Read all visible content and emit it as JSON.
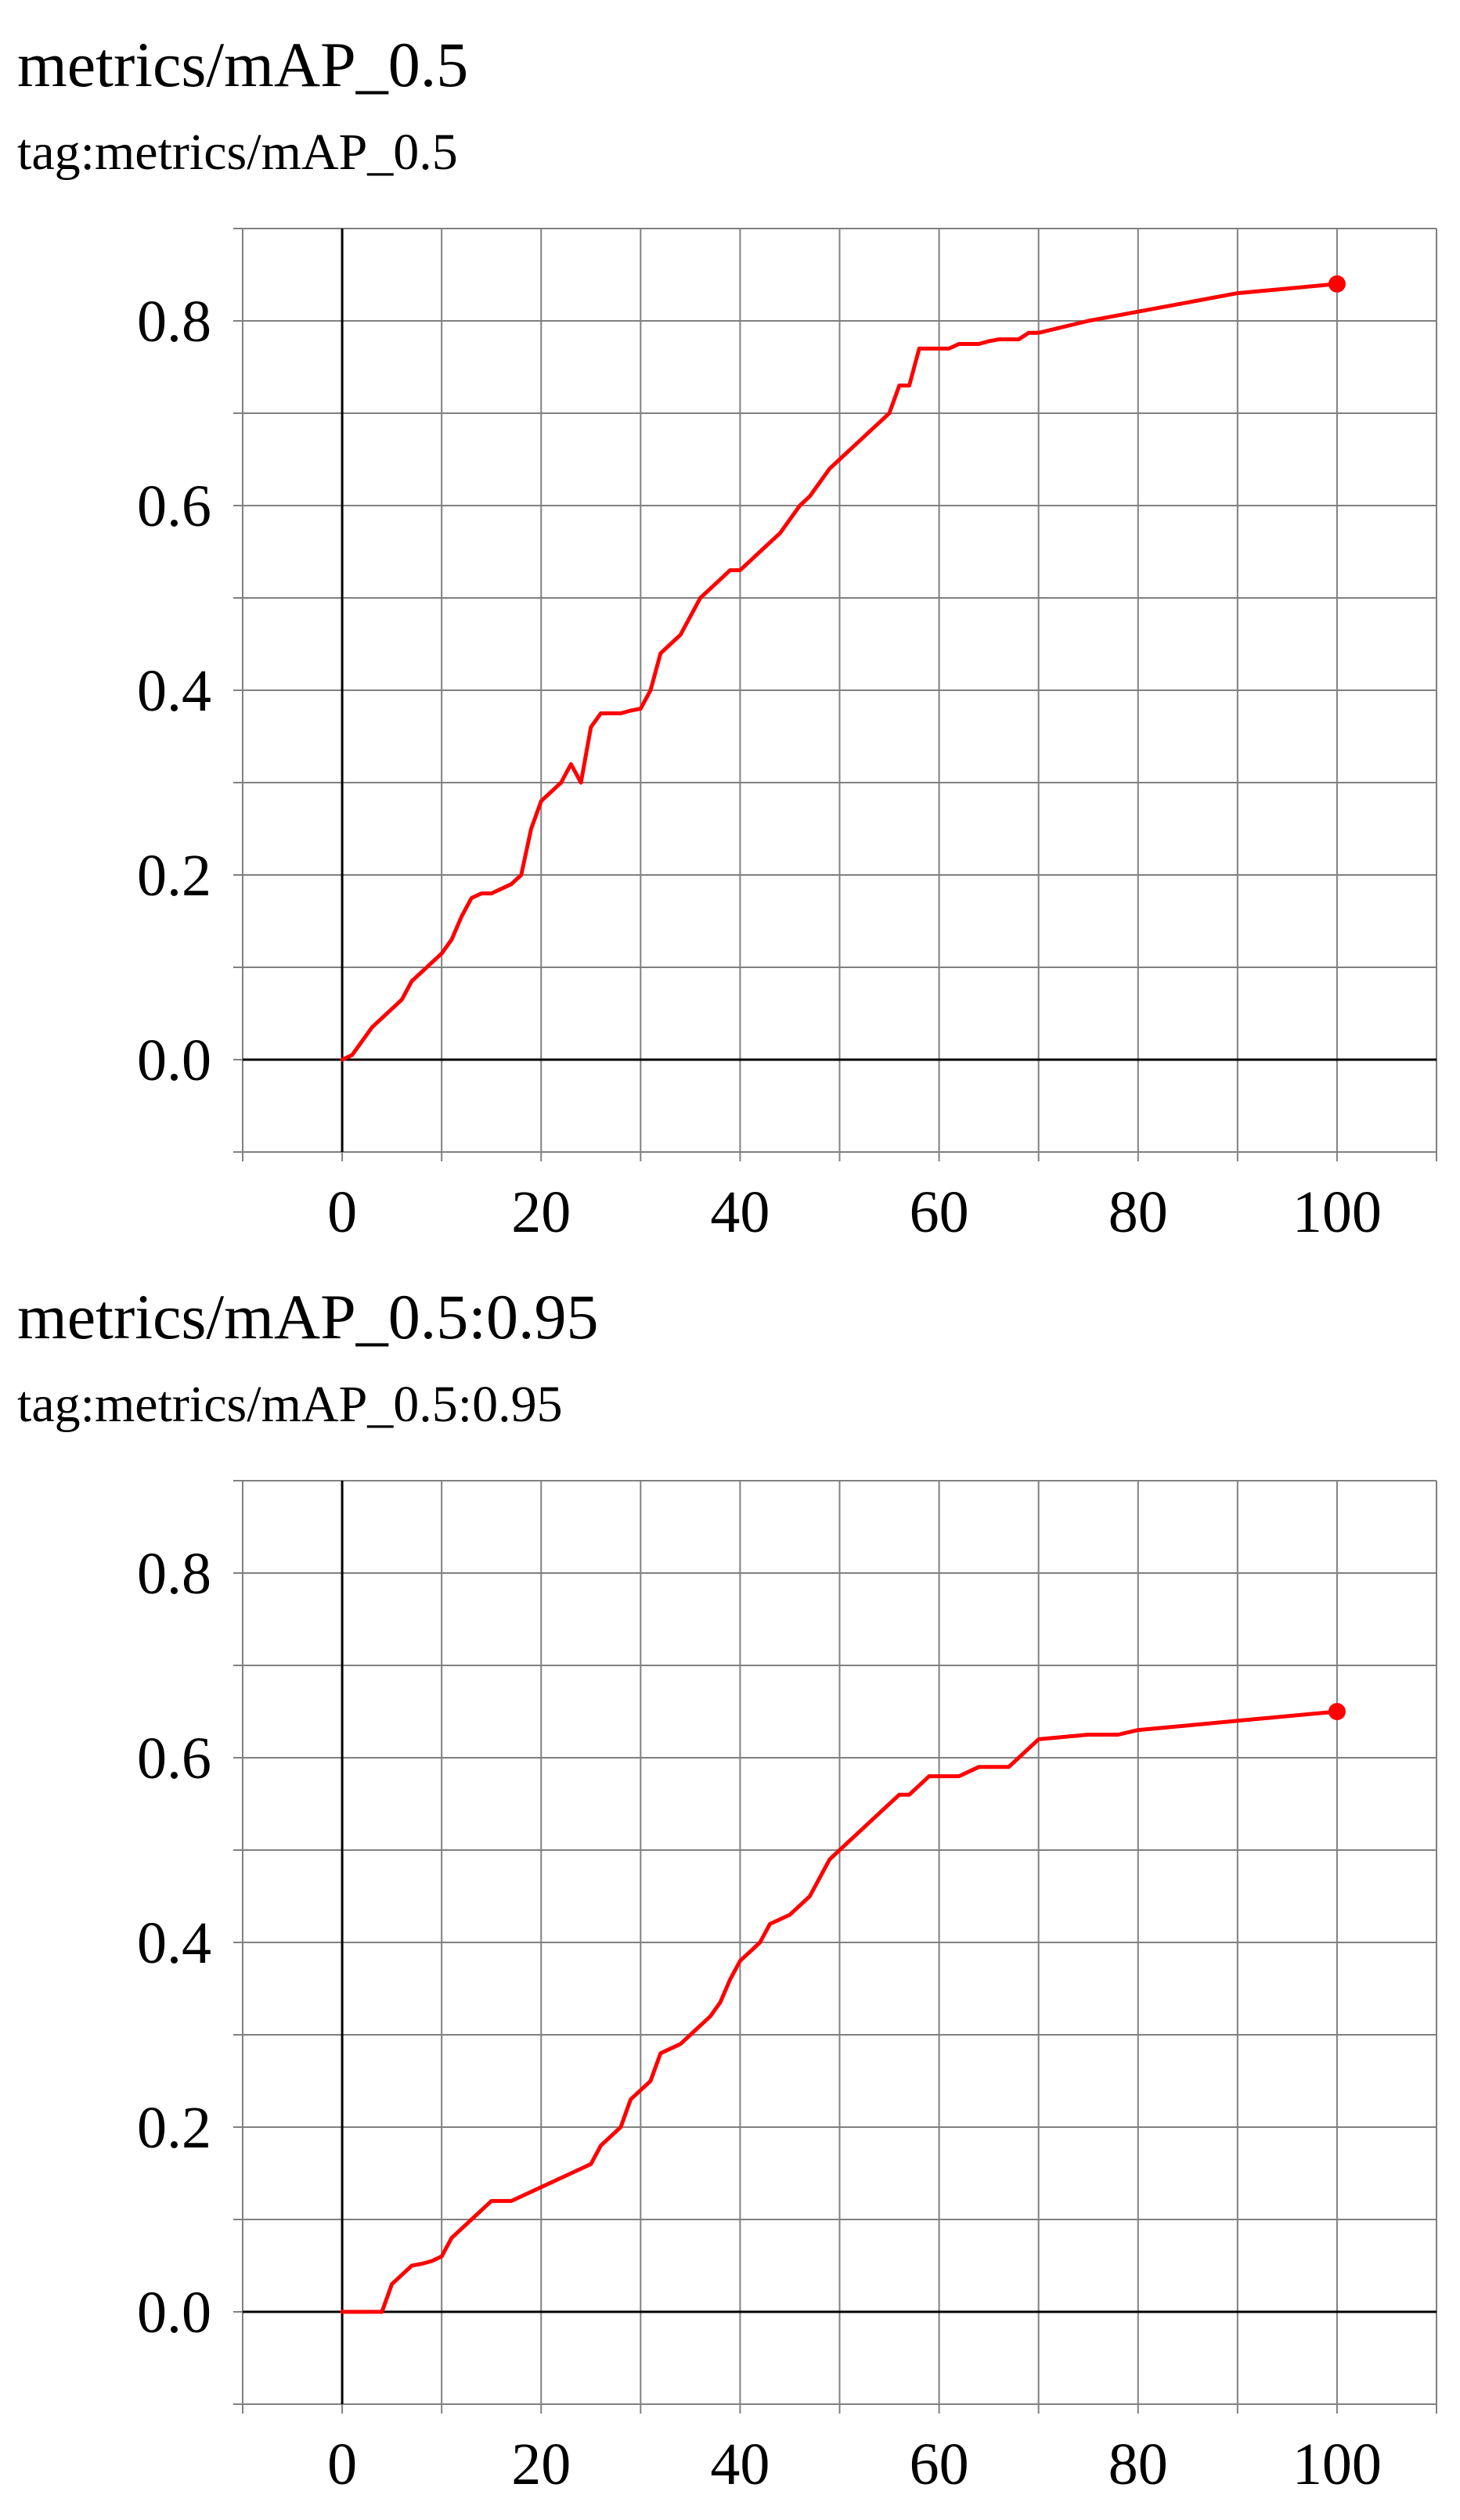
{
  "colors": {
    "series": "#ff0000",
    "grid": "#808080",
    "axis": "#000000",
    "background": "#ffffff"
  },
  "chart_data": [
    {
      "type": "line",
      "title": "metrics/mAP_0.5",
      "subtitle": "tag:metrics/mAP_0.5",
      "xlabel": "",
      "ylabel": "",
      "xlim": [
        -10,
        110
      ],
      "ylim": [
        -0.1,
        0.9
      ],
      "xticks": [
        "0",
        "20",
        "40",
        "60",
        "80",
        "100"
      ],
      "yticks": [
        "0.0",
        "0.2",
        "0.4",
        "0.6",
        "0.8"
      ],
      "grid": true,
      "legend": "none",
      "series": [
        {
          "color": "#ff0000",
          "marker_at_last_point": true,
          "x": [
            0,
            1,
            2,
            3,
            4,
            5,
            6,
            7,
            8,
            9,
            10,
            11,
            12,
            13,
            14,
            15,
            16,
            17,
            18,
            19,
            20,
            21,
            22,
            23,
            24,
            25,
            26,
            27,
            28,
            29,
            30,
            31,
            32,
            33,
            34,
            35,
            36,
            37,
            38,
            39,
            40,
            41,
            42,
            43,
            44,
            45,
            46,
            47,
            48,
            49,
            50,
            51,
            52,
            53,
            54,
            55,
            56,
            57,
            58,
            59,
            60,
            61,
            62,
            63,
            64,
            65,
            66,
            67,
            68,
            69,
            70,
            75,
            80,
            85,
            90,
            95,
            100
          ],
          "y": [
            0.0,
            0.005,
            0.02,
            0.035,
            0.045,
            0.055,
            0.065,
            0.085,
            0.095,
            0.105,
            0.115,
            0.13,
            0.155,
            0.175,
            0.18,
            0.18,
            0.185,
            0.19,
            0.2,
            0.25,
            0.28,
            0.29,
            0.3,
            0.32,
            0.3,
            0.36,
            0.375,
            0.375,
            0.375,
            0.378,
            0.38,
            0.4,
            0.44,
            0.45,
            0.46,
            0.48,
            0.5,
            0.51,
            0.52,
            0.53,
            0.53,
            0.54,
            0.55,
            0.56,
            0.57,
            0.585,
            0.6,
            0.61,
            0.625,
            0.64,
            0.65,
            0.66,
            0.67,
            0.68,
            0.69,
            0.7,
            0.73,
            0.73,
            0.77,
            0.77,
            0.77,
            0.77,
            0.775,
            0.775,
            0.775,
            0.778,
            0.78,
            0.78,
            0.78,
            0.787,
            0.787,
            0.8,
            0.81,
            0.82,
            0.83,
            0.835,
            0.84
          ]
        }
      ]
    },
    {
      "type": "line",
      "title": "metrics/mAP_0.5:0.95",
      "subtitle": "tag:metrics/mAP_0.5:0.95",
      "xlabel": "",
      "ylabel": "",
      "xlim": [
        -10,
        110
      ],
      "ylim": [
        -0.1,
        0.9
      ],
      "xticks": [
        "0",
        "20",
        "40",
        "60",
        "80",
        "100"
      ],
      "yticks": [
        "0.0",
        "0.2",
        "0.4",
        "0.6",
        "0.8"
      ],
      "grid": true,
      "legend": "none",
      "series": [
        {
          "color": "#ff0000",
          "marker_at_last_point": true,
          "x": [
            0,
            1,
            2,
            3,
            4,
            5,
            6,
            7,
            8,
            9,
            10,
            11,
            12,
            13,
            14,
            15,
            16,
            17,
            18,
            19,
            20,
            21,
            22,
            23,
            24,
            25,
            26,
            27,
            28,
            29,
            30,
            31,
            32,
            33,
            34,
            35,
            36,
            37,
            38,
            39,
            40,
            41,
            42,
            43,
            44,
            45,
            46,
            47,
            48,
            49,
            50,
            51,
            52,
            53,
            54,
            55,
            56,
            57,
            58,
            59,
            60,
            61,
            62,
            63,
            64,
            65,
            66,
            67,
            68,
            69,
            70,
            75,
            78,
            80,
            85,
            90,
            95,
            100
          ],
          "y": [
            0.0,
            0.0,
            0.0,
            0.0,
            0.0,
            0.03,
            0.04,
            0.05,
            0.052,
            0.055,
            0.06,
            0.08,
            0.09,
            0.1,
            0.11,
            0.12,
            0.12,
            0.12,
            0.125,
            0.13,
            0.135,
            0.14,
            0.145,
            0.15,
            0.155,
            0.16,
            0.18,
            0.19,
            0.2,
            0.23,
            0.24,
            0.25,
            0.28,
            0.285,
            0.29,
            0.3,
            0.31,
            0.32,
            0.335,
            0.36,
            0.38,
            0.39,
            0.4,
            0.42,
            0.425,
            0.43,
            0.44,
            0.45,
            0.47,
            0.49,
            0.5,
            0.51,
            0.52,
            0.53,
            0.54,
            0.55,
            0.56,
            0.56,
            0.57,
            0.58,
            0.58,
            0.58,
            0.58,
            0.585,
            0.59,
            0.59,
            0.59,
            0.59,
            0.6,
            0.61,
            0.62,
            0.625,
            0.625,
            0.63,
            0.635,
            0.64,
            0.645,
            0.65
          ]
        }
      ]
    }
  ]
}
